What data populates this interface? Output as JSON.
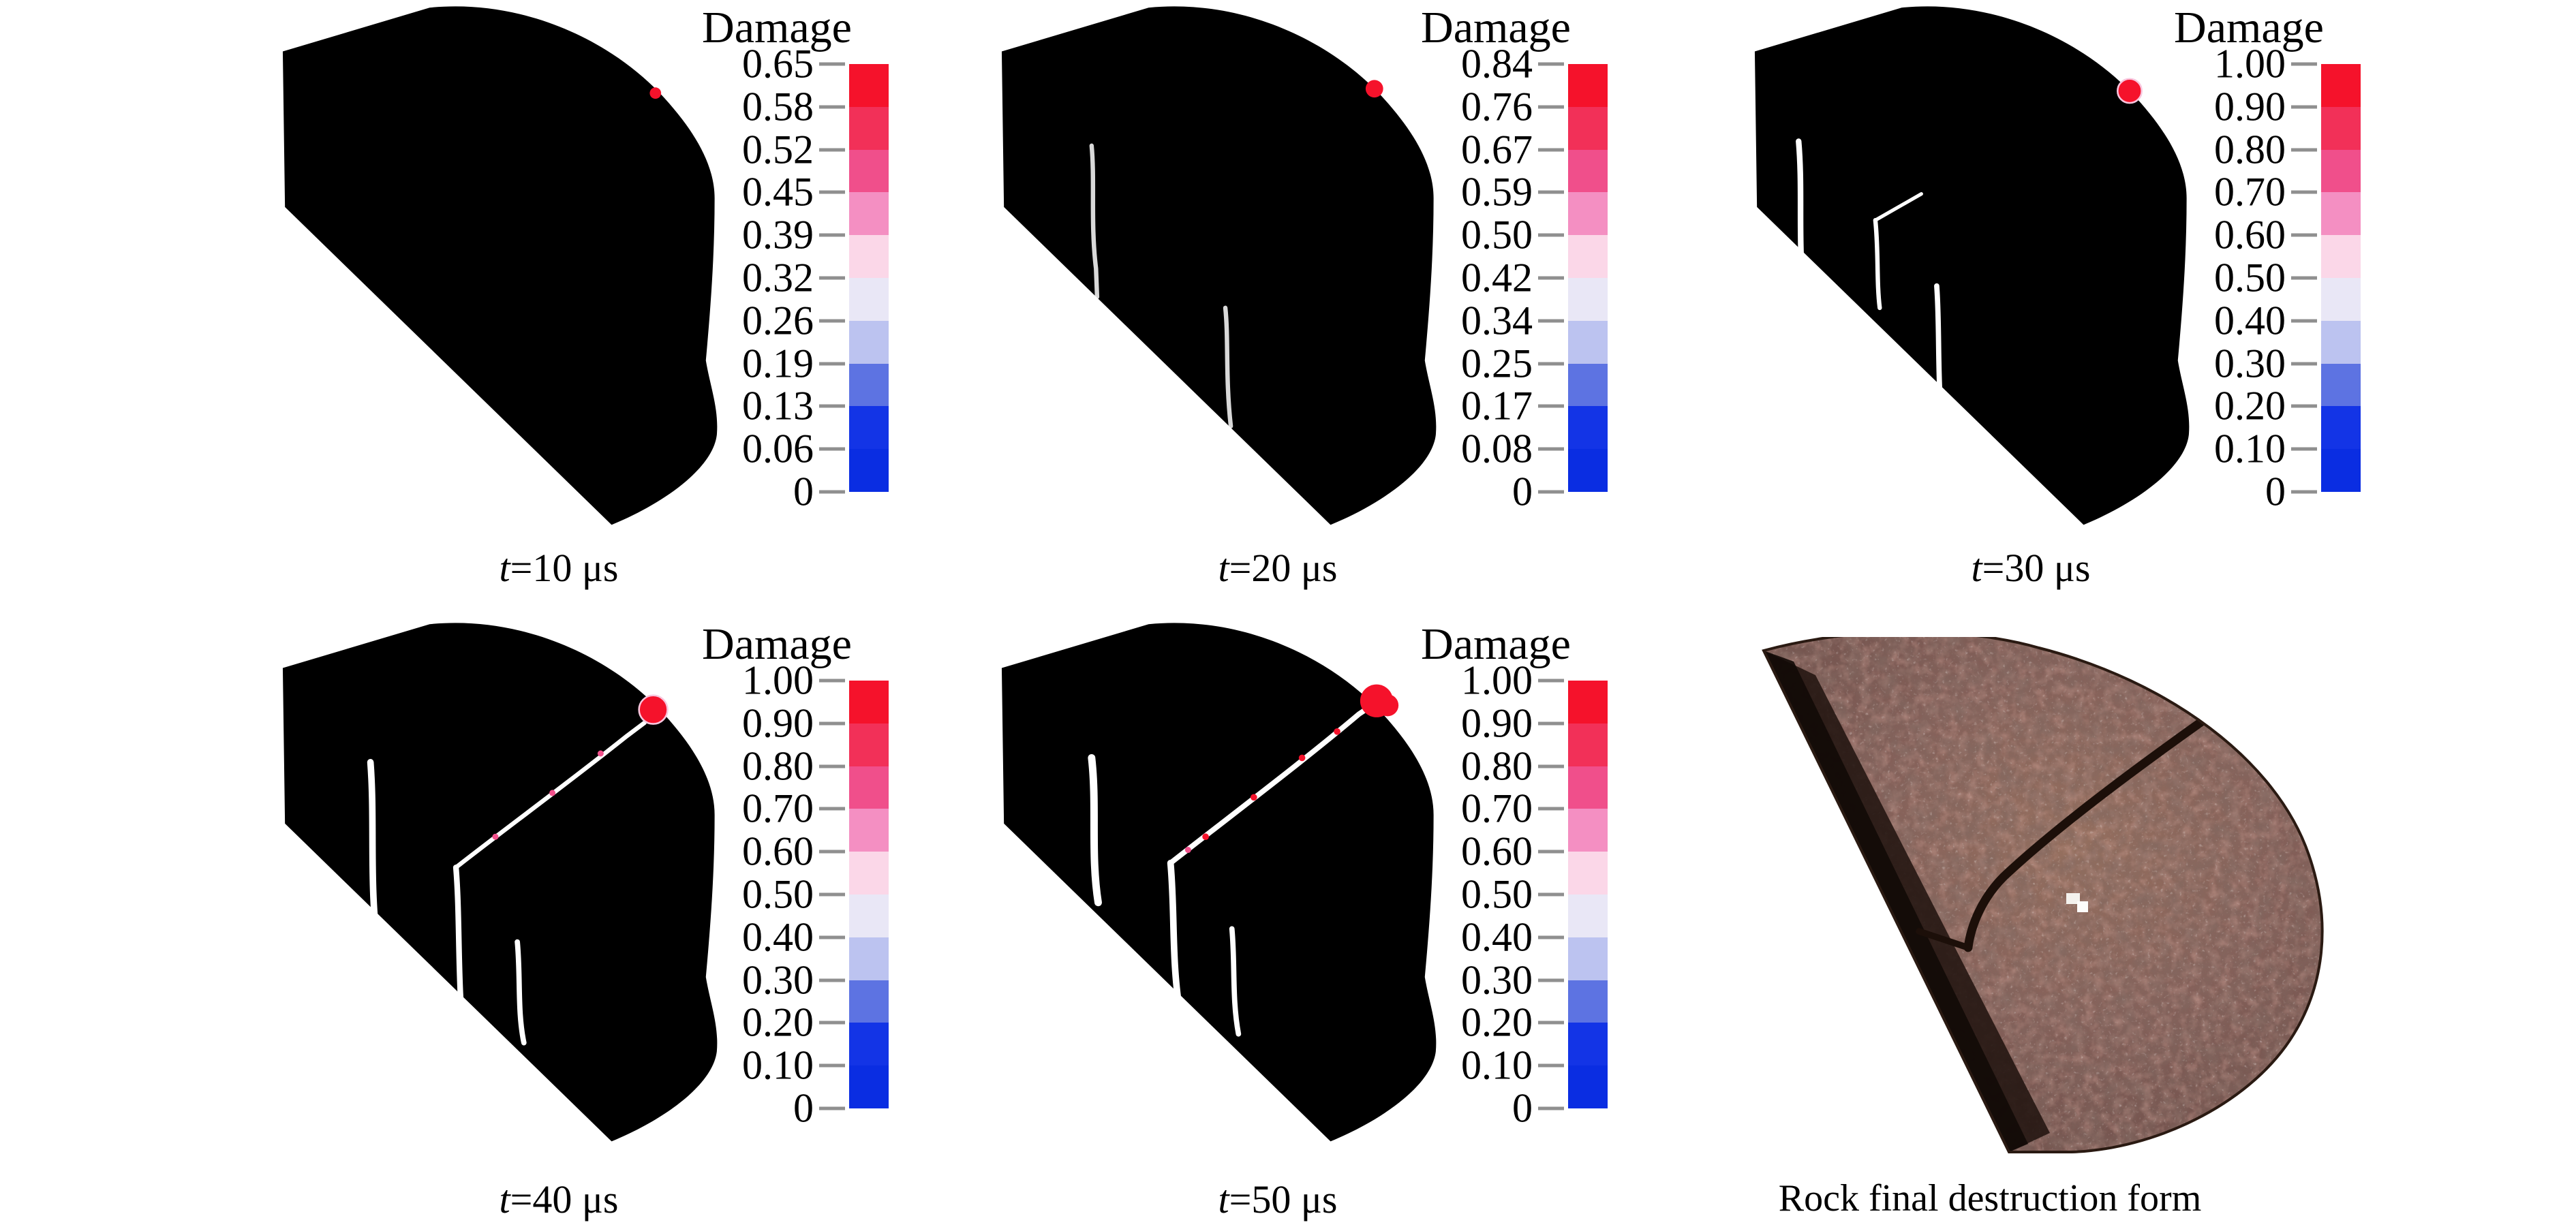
{
  "figure": {
    "kind": "rock-blast-damage-simulation-time-series",
    "background": "#ffffff",
    "colors": {
      "solid": "#0d34d2",
      "edge": "#141414",
      "crack": "#ffffff",
      "hotspot": "#f5122b",
      "tick_dash": "#8f8f8f",
      "text": "#000000"
    },
    "colorbar_palette_top_to_bottom": [
      "#f5122b",
      "#f23058",
      "#f04f8b",
      "#f48fc2",
      "#fbd7e8",
      "#e9e7f6",
      "#bcc3f0",
      "#5d73e2",
      "#1334e6",
      "#0a2de2"
    ],
    "panels": [
      {
        "id": "t10",
        "caption_var": "t",
        "caption_rest": "=10 μs",
        "colorbar_title": "Damage",
        "ticks": [
          "0.65",
          "0.58",
          "0.52",
          "0.45",
          "0.39",
          "0.32",
          "0.26",
          "0.19",
          "0.13",
          "0.06",
          "0"
        ]
      },
      {
        "id": "t20",
        "caption_var": "t",
        "caption_rest": "=20 μs",
        "colorbar_title": "Damage",
        "ticks": [
          "0.84",
          "0.76",
          "0.67",
          "0.59",
          "0.50",
          "0.42",
          "0.34",
          "0.25",
          "0.17",
          "0.08",
          "0"
        ]
      },
      {
        "id": "t30",
        "caption_var": "t",
        "caption_rest": "=30 μs",
        "colorbar_title": "Damage",
        "ticks": [
          "1.00",
          "0.90",
          "0.80",
          "0.70",
          "0.60",
          "0.50",
          "0.40",
          "0.30",
          "0.20",
          "0.10",
          "0"
        ]
      },
      {
        "id": "t40",
        "caption_var": "t",
        "caption_rest": "=40 μs",
        "colorbar_title": "Damage",
        "ticks": [
          "1.00",
          "0.90",
          "0.80",
          "0.70",
          "0.60",
          "0.50",
          "0.40",
          "0.30",
          "0.20",
          "0.10",
          "0"
        ]
      },
      {
        "id": "t50",
        "caption_var": "t",
        "caption_rest": "=50 μs",
        "colorbar_title": "Damage",
        "ticks": [
          "1.00",
          "0.90",
          "0.80",
          "0.70",
          "0.60",
          "0.50",
          "0.40",
          "0.30",
          "0.20",
          "0.10",
          "0"
        ]
      }
    ],
    "photo_panel": {
      "caption": "Rock final destruction form"
    }
  }
}
